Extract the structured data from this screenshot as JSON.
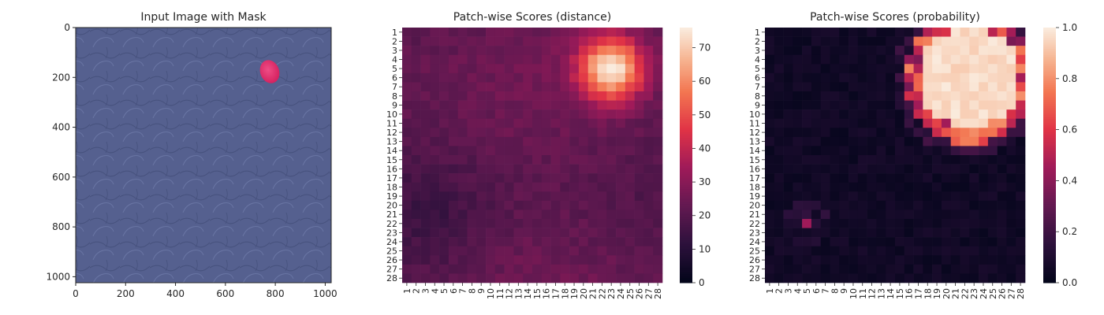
{
  "panels": {
    "image": {
      "title": "Input Image with Mask",
      "x_ticks": [
        "0",
        "200",
        "400",
        "600",
        "800",
        "1000"
      ],
      "y_ticks": [
        "0",
        "200",
        "400",
        "600",
        "800",
        "1000"
      ]
    },
    "distance": {
      "title": "Patch-wise Scores (distance)",
      "colorbar_ticks": [
        "0",
        "10",
        "20",
        "30",
        "40",
        "50",
        "60",
        "70"
      ]
    },
    "probability": {
      "title": "Patch-wise Scores (probability)",
      "colorbar_ticks": [
        "0.0",
        "0.2",
        "0.4",
        "0.6",
        "0.8",
        "1.0"
      ]
    }
  },
  "row_labels": [
    "1",
    "2",
    "3",
    "4",
    "5",
    "6",
    "7",
    "8",
    "9",
    "10",
    "11",
    "12",
    "13",
    "14",
    "15",
    "16",
    "17",
    "18",
    "19",
    "20",
    "21",
    "22",
    "23",
    "24",
    "25",
    "26",
    "27",
    "28"
  ],
  "col_labels": [
    "1",
    "2",
    "3",
    "4",
    "5",
    "6",
    "7",
    "8",
    "9",
    "10",
    "11",
    "12",
    "13",
    "14",
    "15",
    "16",
    "17",
    "18",
    "19",
    "20",
    "21",
    "22",
    "23",
    "24",
    "25",
    "26",
    "27",
    "28"
  ],
  "chart_data": [
    {
      "type": "image",
      "title": "Input Image with Mask",
      "xlim": [
        0,
        1024
      ],
      "ylim": [
        1024,
        0
      ],
      "x_ticks": [
        0,
        200,
        400,
        600,
        800,
        1000
      ],
      "y_ticks": [
        0,
        200,
        400,
        600,
        800,
        1000
      ],
      "background_color": "#55608f",
      "mask_region": {
        "center": [
          775,
          175
        ],
        "radius_x": 38,
        "radius_y": 48,
        "color": "#e1326e"
      }
    },
    {
      "type": "heatmap",
      "title": "Patch-wise Scores (distance)",
      "rows": 28,
      "cols": 28,
      "colorbar_range": [
        0,
        76
      ],
      "colorbar_ticks": [
        0,
        10,
        20,
        30,
        40,
        50,
        60,
        70
      ],
      "colormap": "rocket",
      "base_value": 22,
      "hotspots": [
        {
          "center_row": 5,
          "center_col": 23,
          "peak_value": 76,
          "sigma": 2.4
        },
        {
          "center_row": 22,
          "center_col": 4,
          "peak_value": 6,
          "sigma": 4.0
        }
      ]
    },
    {
      "type": "heatmap",
      "title": "Patch-wise Scores (probability)",
      "rows": 28,
      "cols": 28,
      "colorbar_range": [
        0.0,
        1.0
      ],
      "colorbar_ticks": [
        0.0,
        0.2,
        0.4,
        0.6,
        0.8,
        1.0
      ],
      "colormap": "rocket",
      "base_value": 0.02,
      "hotspots": [
        {
          "center_row": 6,
          "center_col": 22.5,
          "peak_value": 1.0,
          "radius": 5.6
        },
        {
          "center_row": 22,
          "center_col": 5,
          "peak_value": 0.45,
          "radius": 1.2
        }
      ]
    }
  ]
}
